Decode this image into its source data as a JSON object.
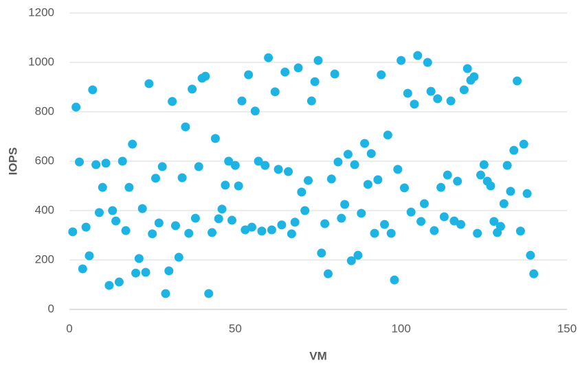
{
  "chart_data": {
    "type": "scatter",
    "x_label": "VM",
    "y_label": "IOPS",
    "color": "#1db4e4",
    "xlim": [
      0,
      150
    ],
    "xticks": [
      0,
      50,
      100,
      150
    ],
    "ylim": [
      0,
      1200
    ],
    "yticks": [
      0,
      200,
      400,
      600,
      800,
      1000,
      1200
    ],
    "grid": true,
    "x": [
      1,
      2,
      3,
      4,
      5,
      6,
      7,
      8,
      9,
      10,
      11,
      12,
      13,
      14,
      15,
      16,
      17,
      18,
      19,
      20,
      21,
      22,
      23,
      24,
      25,
      26,
      27,
      28,
      29,
      30,
      31,
      32,
      33,
      34,
      35,
      36,
      37,
      38,
      39,
      40,
      41,
      42,
      43,
      44,
      45,
      46,
      47,
      48,
      49,
      50,
      51,
      52,
      53,
      54,
      55,
      56,
      57,
      58,
      59,
      60,
      61,
      62,
      63,
      64,
      65,
      66,
      67,
      68,
      69,
      70,
      71,
      72,
      73,
      74,
      75,
      76,
      77,
      78,
      79,
      80,
      81,
      82,
      83,
      84,
      85,
      86,
      87,
      88,
      89,
      90,
      91,
      92,
      93,
      94,
      95,
      96,
      97,
      98,
      99,
      100,
      101,
      102,
      103,
      104,
      105,
      106,
      107,
      108,
      109,
      110,
      111,
      112,
      113,
      114,
      115,
      116,
      117,
      118,
      119,
      120,
      121,
      122,
      123,
      124,
      125,
      126,
      127,
      128,
      129,
      130,
      131,
      132,
      133,
      134,
      135,
      136,
      137,
      138,
      139,
      140
    ],
    "y": [
      314,
      819,
      597,
      164,
      333,
      217,
      889,
      586,
      392,
      494,
      592,
      97,
      400,
      358,
      111,
      600,
      319,
      494,
      669,
      147,
      206,
      408,
      150,
      914,
      306,
      531,
      350,
      578,
      64,
      156,
      842,
      339,
      211,
      533,
      739,
      308,
      892,
      369,
      578,
      936,
      944,
      64,
      311,
      692,
      367,
      406,
      503,
      600,
      361,
      583,
      500,
      844,
      322,
      950,
      333,
      803,
      600,
      317,
      583,
      1019,
      322,
      881,
      567,
      342,
      961,
      558,
      306,
      353,
      978,
      475,
      400,
      522,
      844,
      922,
      1008,
      228,
      347,
      144,
      528,
      953,
      597,
      369,
      425,
      628,
      197,
      586,
      219,
      389,
      672,
      506,
      631,
      308,
      525,
      950,
      344,
      706,
      308,
      119,
      567,
      1008,
      492,
      875,
      394,
      831,
      1028,
      356,
      428,
      1000,
      883,
      319,
      853,
      494,
      375,
      544,
      844,
      358,
      519,
      344,
      889,
      975,
      928,
      942,
      308,
      544,
      586,
      519,
      500,
      356,
      311,
      336,
      428,
      583,
      478,
      644,
      925,
      317,
      669,
      469,
      219,
      144
    ]
  }
}
